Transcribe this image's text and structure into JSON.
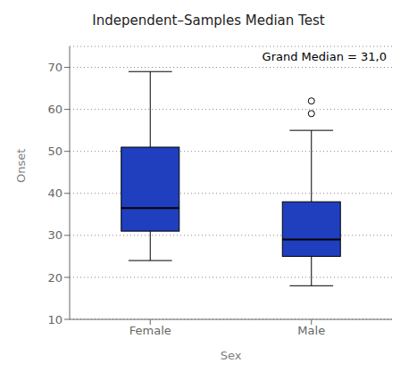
{
  "chart_data": {
    "type": "box",
    "title": "Independent–Samples Median Test",
    "xlabel": "Sex",
    "ylabel": "Onset",
    "categories": [
      "Female",
      "Male"
    ],
    "boxes": [
      {
        "q1": 31,
        "median": 36.5,
        "q3": 51,
        "whisker_low": 24,
        "whisker_high": 69,
        "outliers": []
      },
      {
        "q1": 25,
        "median": 29,
        "q3": 38,
        "whisker_low": 18,
        "whisker_high": 55,
        "outliers": [
          59,
          62
        ]
      }
    ],
    "color": "#1F3FBF",
    "ylim": [
      10,
      75
    ],
    "yticks": [
      10,
      20,
      30,
      40,
      50,
      60,
      70
    ],
    "grid": "y",
    "annotation": "Grand Median = 31,0"
  }
}
